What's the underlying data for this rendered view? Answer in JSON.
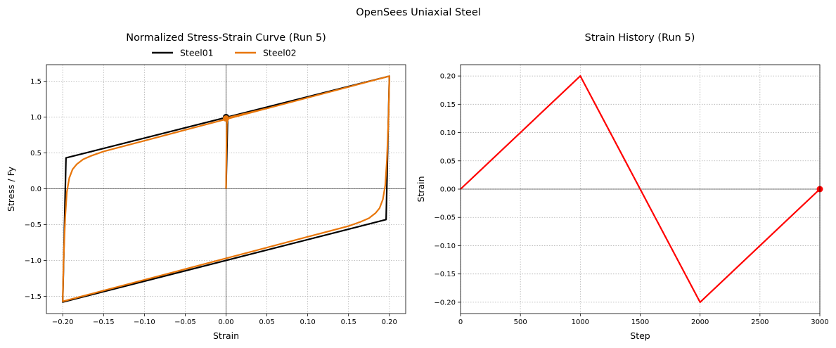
{
  "figure": {
    "suptitle": "OpenSees Uniaxial Steel"
  },
  "chart_data": [
    {
      "type": "line",
      "title": "Normalized Stress-Strain Curve (Run 5)",
      "xlabel": "Strain",
      "ylabel": "Stress / Fy",
      "xlim": [
        -0.22,
        0.22
      ],
      "ylim": [
        -1.74,
        1.73
      ],
      "xticks": [
        -0.2,
        -0.15,
        -0.1,
        -0.05,
        0.0,
        0.05,
        0.1,
        0.15,
        0.2
      ],
      "xtick_labels": [
        "−0.20",
        "−0.15",
        "−0.10",
        "−0.05",
        "0.00",
        "0.05",
        "0.10",
        "0.15",
        "0.20"
      ],
      "yticks": [
        -1.5,
        -1.0,
        -0.5,
        0.0,
        0.5,
        1.0,
        1.5
      ],
      "ytick_labels": [
        "−1.5",
        "−1.0",
        "−0.5",
        "0.0",
        "0.5",
        "1.0",
        "1.5"
      ],
      "grid": true,
      "zero_lines": true,
      "legend": {
        "placement": "top-center-outside",
        "columns": 2
      },
      "series": [
        {
          "name": "Steel01",
          "color": "#000000",
          "x": [
            0.0,
            0.002,
            0.2,
            0.2,
            0.196,
            0.196,
            -0.2,
            -0.2,
            -0.196,
            -0.196,
            0.2
          ],
          "y": [
            0.0,
            1.0,
            1.57,
            1.56,
            -0.43,
            -0.43,
            -1.58,
            -1.56,
            0.43,
            0.43,
            1.57
          ],
          "marker": {
            "x": 0.0,
            "y": 1.0
          }
        },
        {
          "name": "Steel02",
          "color": "#e8760a",
          "x": [
            0.0,
            0.0005,
            0.001,
            0.002,
            0.02,
            0.05,
            0.1,
            0.15,
            0.2,
            0.2,
            0.199,
            0.197,
            0.195,
            0.192,
            0.188,
            0.183,
            0.175,
            0.165,
            0.15,
            0.13,
            0.1,
            0.05,
            0.0,
            -0.05,
            -0.1,
            -0.15,
            -0.2,
            -0.2,
            -0.199,
            -0.197,
            -0.195,
            -0.192,
            -0.188,
            -0.183,
            -0.175,
            -0.165,
            -0.15,
            -0.13,
            -0.1,
            -0.05,
            0.0,
            0.05,
            0.1,
            0.15,
            0.2
          ],
          "y": [
            0.0,
            0.6,
            0.9,
            0.99,
            1.04,
            1.12,
            1.27,
            1.42,
            1.57,
            1.55,
            1.0,
            0.4,
            0.05,
            -0.15,
            -0.27,
            -0.34,
            -0.41,
            -0.46,
            -0.52,
            -0.58,
            -0.67,
            -0.82,
            -0.97,
            -1.12,
            -1.27,
            -1.42,
            -1.57,
            -1.55,
            -1.0,
            -0.4,
            -0.05,
            0.15,
            0.27,
            0.34,
            0.41,
            0.46,
            0.52,
            0.58,
            0.67,
            0.82,
            0.97,
            1.12,
            1.27,
            1.42,
            1.57
          ],
          "marker": {
            "x": 0.0,
            "y": 0.98
          }
        }
      ]
    },
    {
      "type": "line",
      "title": "Strain History (Run 5)",
      "xlabel": "Step",
      "ylabel": "Strain",
      "xlim": [
        0,
        3000
      ],
      "ylim": [
        -0.22,
        0.22
      ],
      "xticks": [
        0,
        500,
        1000,
        1500,
        2000,
        2500,
        3000
      ],
      "xtick_labels": [
        "0",
        "500",
        "1000",
        "1500",
        "2000",
        "2500",
        "3000"
      ],
      "yticks": [
        -0.2,
        -0.15,
        -0.1,
        -0.05,
        0.0,
        0.05,
        0.1,
        0.15,
        0.2
      ],
      "ytick_labels": [
        "−0.20",
        "−0.15",
        "−0.10",
        "−0.05",
        "0.00",
        "0.05",
        "0.10",
        "0.15",
        "0.20"
      ],
      "grid": true,
      "zero_lines": true,
      "series": [
        {
          "name": "",
          "color": "#ff0000",
          "x": [
            0,
            1000,
            2000,
            3000
          ],
          "y": [
            0.0,
            0.2,
            -0.2,
            0.0
          ],
          "marker": {
            "x": 3000,
            "y": 0.0
          }
        }
      ]
    }
  ]
}
